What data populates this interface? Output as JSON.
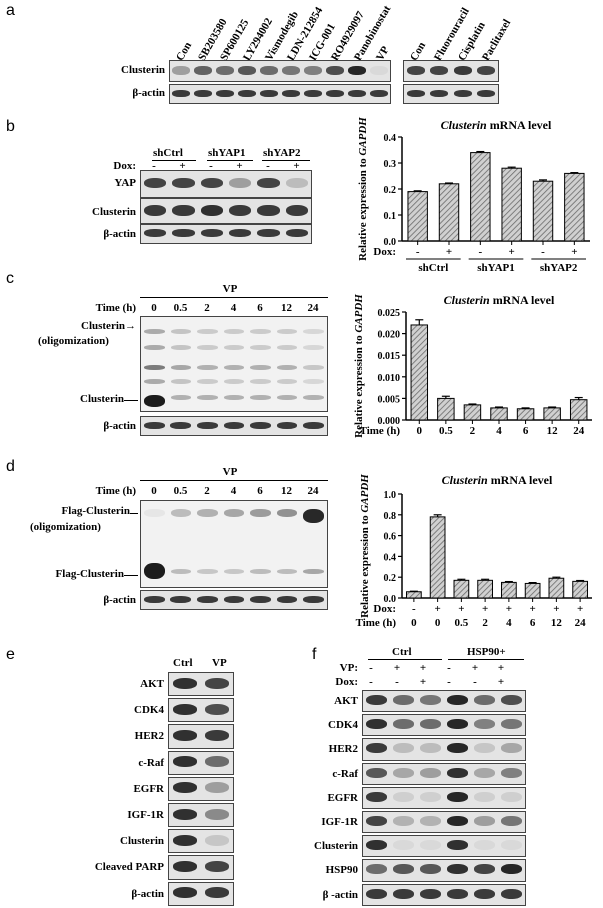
{
  "panels": {
    "a": {
      "label": "a",
      "left_lanes": [
        "Con",
        "SB203580",
        "SP600125",
        "LY294002",
        "Vismodegib",
        "LDN-212854",
        "ICG-001",
        "RO4929097",
        "Panobinostat",
        "VP"
      ],
      "right_lanes": [
        "Con",
        "Fluorouracil",
        "Cisplatin",
        "Paclitaxel"
      ],
      "rows": [
        "Clusterin",
        "β-actin"
      ],
      "clusterin_left": [
        0.35,
        0.65,
        0.6,
        0.7,
        0.6,
        0.55,
        0.5,
        0.75,
        0.95,
        0.05
      ],
      "clusterin_right": [
        0.8,
        0.8,
        0.85,
        0.8
      ]
    },
    "b": {
      "label": "b",
      "groups": [
        "shCtrl",
        "shYAP1",
        "shYAP2"
      ],
      "dox_label": "Dox:",
      "dox_values": [
        "-",
        "+",
        "-",
        "+",
        "-",
        "+"
      ],
      "rows": [
        "YAP",
        "Clusterin",
        "β-actin"
      ],
      "yap_intensity": [
        0.8,
        0.8,
        0.8,
        0.35,
        0.8,
        0.2
      ]
    },
    "c": {
      "label": "c",
      "treatment": "VP",
      "time_label": "Time (h)",
      "times": [
        "0",
        "0.5",
        "2",
        "4",
        "6",
        "12",
        "24"
      ],
      "labels": [
        "Clusterin→",
        "(oligomization)",
        "Clusterin",
        "β-actin"
      ]
    },
    "d": {
      "label": "d",
      "treatment": "VP",
      "time_label": "Time (h)",
      "times": [
        "0",
        "0.5",
        "2",
        "4",
        "6",
        "12",
        "24"
      ],
      "labels": [
        "Flag-Clusterin",
        "(oligomization)",
        "Flag-Clusterin",
        "β-actin"
      ]
    },
    "e": {
      "label": "e",
      "lanes": [
        "Ctrl",
        "VP"
      ],
      "rows": [
        "AKT",
        "CDK4",
        "HER2",
        "c-Raf",
        "EGFR",
        "IGF-1R",
        "Clusterin",
        "Cleaved PARP",
        "β-actin"
      ],
      "vp_intensity": [
        0.8,
        0.75,
        0.85,
        0.6,
        0.35,
        0.45,
        0.15,
        0.8,
        0.85
      ]
    },
    "f": {
      "label": "f",
      "groups": [
        "Ctrl",
        "HSP90+"
      ],
      "vp_label": "VP:",
      "dox_label": "Dox:",
      "vp_values": [
        "-",
        "+",
        "+",
        "-",
        "+",
        "+"
      ],
      "dox_values": [
        "-",
        "-",
        "+",
        "-",
        "-",
        "+"
      ],
      "rows": [
        "AKT",
        "CDK4",
        "HER2",
        "c-Raf",
        "EGFR",
        "IGF-1R",
        "Clusterin",
        "HSP90",
        "β -actin"
      ]
    }
  },
  "chart_data": [
    {
      "type": "bar",
      "title": "Clusterin mRNA level",
      "ylabel": "Relative expression to GAPDH",
      "ylim": [
        0,
        0.4
      ],
      "yticks": [
        "0.0",
        "0.1",
        "0.2",
        "0.3",
        "0.4"
      ],
      "dox_label": "Dox:",
      "dox": [
        "-",
        "+",
        "-",
        "+",
        "-",
        "+"
      ],
      "groups": [
        "shCtrl",
        "shYAP1",
        "shYAP2"
      ],
      "values": [
        0.19,
        0.22,
        0.34,
        0.28,
        0.23,
        0.26
      ],
      "errors": [
        0.003,
        0.003,
        0.004,
        0.004,
        0.005,
        0.003
      ]
    },
    {
      "type": "bar",
      "title": "Clusterin mRNA level",
      "ylabel": "Relative expression to GAPDH",
      "ylim": [
        0,
        0.025
      ],
      "yticks": [
        "0.000",
        "0.005",
        "0.010",
        "0.015",
        "0.020",
        "0.025"
      ],
      "xlabel": "Time (h)",
      "categories": [
        "0",
        "0.5",
        "2",
        "4",
        "6",
        "12",
        "24"
      ],
      "values": [
        0.022,
        0.005,
        0.0035,
        0.0028,
        0.0026,
        0.0028,
        0.0047
      ],
      "errors": [
        0.0012,
        0.0005,
        0.0002,
        0.0002,
        0.0002,
        0.0002,
        0.0005
      ]
    },
    {
      "type": "bar",
      "title": "Clusterin mRNA level",
      "ylabel": "Relative expression to GAPDH",
      "ylim": [
        0,
        1.0
      ],
      "yticks": [
        "0.0",
        "0.2",
        "0.4",
        "0.6",
        "0.8",
        "1.0"
      ],
      "dox_label": "Dox:",
      "dox": [
        "-",
        "+",
        "+",
        "+",
        "+",
        "+",
        "+",
        "+"
      ],
      "xlabel": "Time (h)",
      "categories": [
        "0",
        "0",
        "0.5",
        "2",
        "4",
        "6",
        "12",
        "24"
      ],
      "values": [
        0.06,
        0.78,
        0.17,
        0.17,
        0.15,
        0.14,
        0.19,
        0.16
      ],
      "errors": [
        0.005,
        0.02,
        0.01,
        0.01,
        0.008,
        0.008,
        0.01,
        0.008
      ]
    }
  ]
}
